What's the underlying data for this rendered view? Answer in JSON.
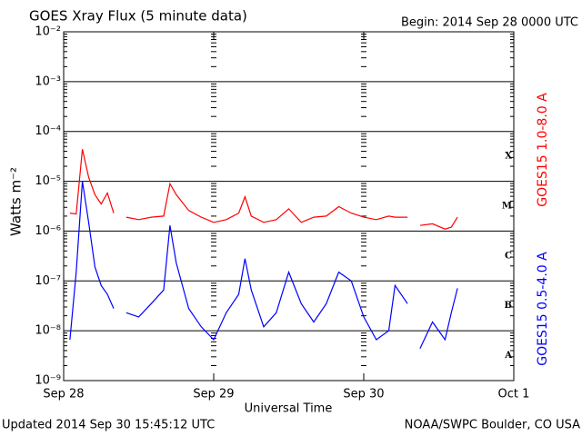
{
  "chart_data": {
    "type": "line",
    "title": "GOES Xray Flux (5 minute data)",
    "subtitle": "Begin:  2014 Sep 28 0000 UTC",
    "y_label": "Watts m⁻²",
    "x_label": "Universal Time",
    "footer_left": "Updated 2014 Sep 30 15:45:12 UTC",
    "footer_right": "NOAA/SWPC Boulder, CO USA",
    "class_labels": [
      "X",
      "M",
      "C",
      "B",
      "A"
    ],
    "log_scale": true,
    "grid": true,
    "ylim": [
      1e-09,
      0.01
    ],
    "yticks": [
      {
        "value": 0.01,
        "label": "10⁻²"
      },
      {
        "value": 0.001,
        "label": "10⁻³"
      },
      {
        "value": 0.0001,
        "label": "10⁻⁴"
      },
      {
        "value": 1e-05,
        "label": "10⁻⁵"
      },
      {
        "value": 1e-06,
        "label": "10⁻⁶"
      },
      {
        "value": 1e-07,
        "label": "10⁻⁷"
      },
      {
        "value": 1e-08,
        "label": "10⁻⁸"
      },
      {
        "value": 1e-09,
        "label": "10⁻⁹"
      }
    ],
    "xlim": [
      "2014-09-28T00:00",
      "2014-10-01T00:00"
    ],
    "xticks": [
      {
        "value": "2014-09-28T00:00",
        "label": "Sep 28"
      },
      {
        "value": "2014-09-29T00:00",
        "label": "Sep 29"
      },
      {
        "value": "2014-09-30T00:00",
        "label": "Sep 30"
      },
      {
        "value": "2014-10-01T00:00",
        "label": "Oct 1"
      }
    ],
    "x": [
      "2014-09-28T01:00",
      "2014-09-28T02:00",
      "2014-09-28T03:00",
      "2014-09-28T04:00",
      "2014-09-28T05:00",
      "2014-09-28T06:00",
      "2014-09-28T07:00",
      "2014-09-28T08:00",
      "2014-09-28T09:00",
      "2014-09-28T10:00",
      "2014-09-28T12:00",
      "2014-09-28T14:00",
      "2014-09-28T16:00",
      "2014-09-28T17:00",
      "2014-09-28T18:00",
      "2014-09-28T20:00",
      "2014-09-28T22:00",
      "2014-09-29T00:00",
      "2014-09-29T02:00",
      "2014-09-29T04:00",
      "2014-09-29T05:00",
      "2014-09-29T06:00",
      "2014-09-29T08:00",
      "2014-09-29T10:00",
      "2014-09-29T12:00",
      "2014-09-29T14:00",
      "2014-09-29T16:00",
      "2014-09-29T18:00",
      "2014-09-29T20:00",
      "2014-09-29T22:00",
      "2014-09-30T00:00",
      "2014-09-30T02:00",
      "2014-09-30T04:00",
      "2014-09-30T05:00",
      "2014-09-30T07:00",
      "2014-09-30T08:00",
      "2014-09-30T09:00",
      "2014-09-30T11:00",
      "2014-09-30T13:00",
      "2014-09-30T14:00",
      "2014-09-30T15:00"
    ],
    "series": [
      {
        "name": "GOES15 1.0-8.0 A",
        "color": "#ff0000",
        "values": [
          2.3e-06,
          2.2e-06,
          4.4e-05,
          1.2e-05,
          5.4e-06,
          3.5e-06,
          5.8e-06,
          2.3e-06,
          null,
          1.9e-06,
          1.7e-06,
          1.9e-06,
          2e-06,
          8.9e-06,
          5.4e-06,
          2.6e-06,
          1.9e-06,
          1.5e-06,
          1.7e-06,
          2.3e-06,
          4.9e-06,
          2e-06,
          1.5e-06,
          1.7e-06,
          2.8e-06,
          1.5e-06,
          1.9e-06,
          2e-06,
          3.1e-06,
          2.3e-06,
          1.9e-06,
          1.7e-06,
          2e-06,
          1.9e-06,
          1.9e-06,
          null,
          1.3e-06,
          1.4e-06,
          1.1e-06,
          1.2e-06,
          1.9e-06
        ]
      },
      {
        "name": "GOES15 0.5-4.0 A",
        "color": "#0000ff",
        "values": [
          6.6e-09,
          1.5e-07,
          1e-05,
          1.5e-06,
          1.9e-07,
          8.1e-08,
          5.4e-08,
          2.8e-08,
          null,
          2.3e-08,
          1.9e-08,
          3.5e-08,
          6.6e-08,
          1.3e-06,
          2.3e-07,
          2.8e-08,
          1.2e-08,
          6.6e-09,
          2.3e-08,
          5.4e-08,
          2.8e-07,
          6.6e-08,
          1.2e-08,
          2.3e-08,
          1.5e-07,
          3.5e-08,
          1.5e-08,
          3.5e-08,
          1.5e-07,
          1e-07,
          1.9e-08,
          6.6e-09,
          1e-08,
          8.1e-08,
          3.5e-08,
          null,
          4.4e-09,
          1.5e-08,
          6.6e-09,
          2.3e-08,
          7.1e-08
        ]
      }
    ]
  }
}
